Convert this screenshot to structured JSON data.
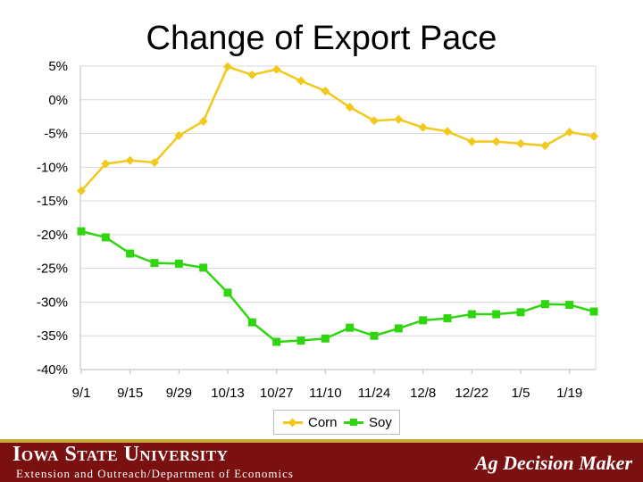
{
  "slide": {
    "title": "Change of Export Pace"
  },
  "footer": {
    "university": "Iowa State University",
    "department": "Extension and Outreach/Department of Economics",
    "brand": "Ag Decision Maker"
  },
  "colors": {
    "corn": "#f2c81d",
    "soy": "#2fd60f",
    "grid": "#d9d9d9",
    "footer_bg": "#7a1010"
  },
  "chart_data": {
    "type": "line",
    "title": "Change of Export Pace",
    "xlabel": "",
    "ylabel": "",
    "ylim": [
      -40,
      5
    ],
    "yticks": [
      "5%",
      "0%",
      "-5%",
      "-10%",
      "-15%",
      "-20%",
      "-25%",
      "-30%",
      "-35%",
      "-40%"
    ],
    "ytick_values": [
      5,
      0,
      -5,
      -10,
      -15,
      -20,
      -25,
      -30,
      -35,
      -40
    ],
    "x": [
      "9/1",
      "9/8",
      "9/15",
      "9/22",
      "9/29",
      "10/6",
      "10/13",
      "10/20",
      "10/27",
      "11/3",
      "11/10",
      "11/17",
      "11/24",
      "12/1",
      "12/8",
      "12/15",
      "12/22",
      "12/29",
      "1/5",
      "1/12",
      "1/19",
      "1/26"
    ],
    "xticks": [
      "9/1",
      "9/15",
      "9/29",
      "10/13",
      "10/27",
      "11/10",
      "11/24",
      "12/8",
      "12/22",
      "1/5",
      "1/19"
    ],
    "grid": true,
    "legend": "bottom",
    "series": [
      {
        "name": "Corn",
        "values": [
          -13.5,
          -9.5,
          -9.0,
          -9.3,
          -5.3,
          -3.2,
          4.9,
          3.7,
          4.5,
          2.8,
          1.3,
          -1.1,
          -3.1,
          -2.9,
          -4.1,
          -4.7,
          -6.2,
          -6.2,
          -6.5,
          -6.8,
          -4.8,
          -5.4
        ]
      },
      {
        "name": "Soy",
        "values": [
          -19.5,
          -20.4,
          -22.8,
          -24.2,
          -24.3,
          -24.9,
          -28.6,
          -33.0,
          -35.9,
          -35.7,
          -35.4,
          -33.8,
          -35.0,
          -33.9,
          -32.7,
          -32.4,
          -31.8,
          -31.8,
          -31.5,
          -30.3,
          -30.4,
          -31.4
        ]
      }
    ]
  }
}
